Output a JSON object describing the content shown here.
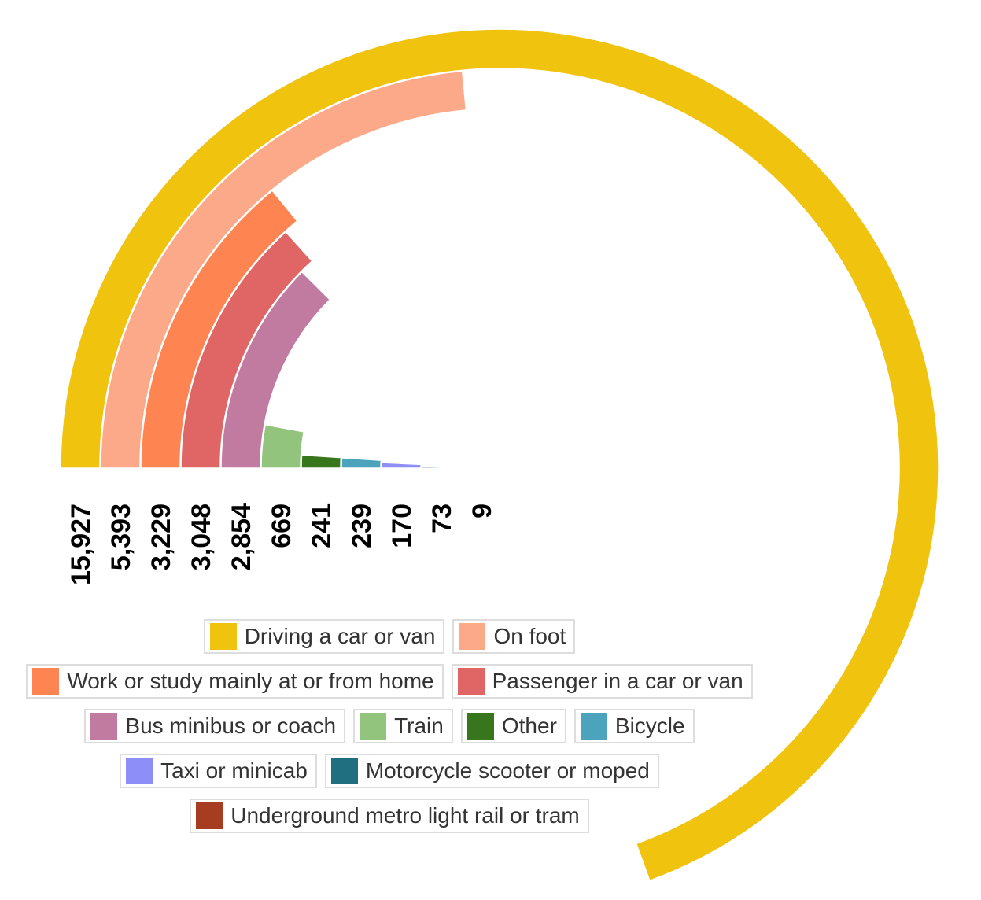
{
  "chart_data": {
    "type": "radial-bar",
    "categories": [
      "Driving a car or van",
      "On foot",
      "Work or study mainly at or from home",
      "Passenger in a car or van",
      "Bus minibus or coach",
      "Train",
      "Other",
      "Bicycle",
      "Taxi or minicab",
      "Motorcycle scooter or moped",
      "Underground metro light rail or tram"
    ],
    "values": [
      15927,
      5393,
      3229,
      3048,
      2854,
      669,
      241,
      239,
      170,
      73,
      9
    ],
    "value_labels": [
      "15,927",
      "5,393",
      "3,229",
      "3,048",
      "2,854",
      "669",
      "241",
      "239",
      "170",
      "73",
      "9"
    ],
    "colors": [
      "#f0c30f",
      "#fca98a",
      "#fe8552",
      "#e06666",
      "#c27ba0",
      "#93c47d",
      "#38761d",
      "#4ba4bb",
      "#8e8ef8",
      "#1f6f80",
      "#a63d20"
    ],
    "legend": "bottom"
  }
}
